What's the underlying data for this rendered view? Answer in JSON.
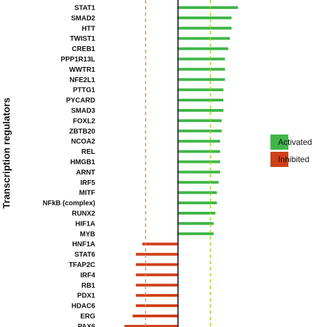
{
  "chart_data": {
    "type": "bar",
    "orientation": "horizontal",
    "ylabel": "Transcription regulators",
    "xlabel": "",
    "title": "",
    "xlim": [
      -3.5,
      4.5
    ],
    "categories": [
      "STAT1",
      "SMAD2",
      "HTT",
      "TWIST1",
      "CREB1",
      "PPP1R13L",
      "WWTR1",
      "NFE2L1",
      "PTTG1",
      "PYCARD",
      "SMAD3",
      "FOXL2",
      "ZBTB20",
      "NCOA2",
      "REL",
      "HMGB1",
      "ARNT",
      "IRF5",
      "MITF",
      "NFkB (complex)",
      "RUNX2",
      "HIF1A",
      "MYB",
      "HNF1A",
      "STAT6",
      "TFAP2C",
      "IRF4",
      "RB1",
      "PDX1",
      "HDAC6",
      "ERG",
      "PAX6"
    ],
    "values": [
      3.7,
      3.3,
      3.3,
      3.2,
      3.1,
      2.9,
      2.9,
      2.9,
      2.8,
      2.8,
      2.8,
      2.7,
      2.7,
      2.6,
      2.6,
      2.6,
      2.6,
      2.5,
      2.4,
      2.4,
      2.3,
      2.2,
      2.2,
      -2.2,
      -2.6,
      -2.6,
      -2.6,
      -2.6,
      -2.6,
      -2.6,
      -2.8,
      -3.3
    ],
    "thresholds": [
      {
        "value": -2,
        "color": "#e8892a",
        "style": "dashed"
      },
      {
        "value": 0,
        "color": "#111111",
        "style": "solid"
      },
      {
        "value": 2,
        "color": "#8ed81f",
        "style": "dashed"
      }
    ],
    "legend": {
      "position": "right",
      "entries": [
        {
          "label": "Activated",
          "color": "#3fb648"
        },
        {
          "label": "Inhibited",
          "color": "#cf4019"
        }
      ]
    },
    "colors": {
      "activated": "#3fb648",
      "inhibited": "#cf4019"
    },
    "grid": false
  }
}
